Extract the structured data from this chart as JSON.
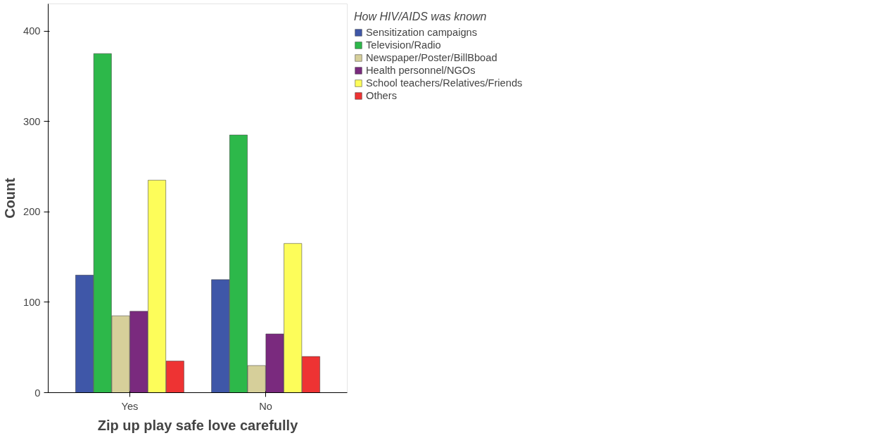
{
  "chart_data": {
    "type": "bar",
    "xlabel": "Zip up play safe love carefully",
    "ylabel": "Count",
    "legend_title": "How HIV/AIDS was known",
    "categories": [
      "Yes",
      "No"
    ],
    "series": [
      {
        "name": "Sensitization campaigns",
        "color": "#3f57a8",
        "values": [
          130,
          125
        ]
      },
      {
        "name": "Television/Radio",
        "color": "#2db84a",
        "values": [
          375,
          285
        ]
      },
      {
        "name": "Newspaper/Poster/BillBboad",
        "color": "#d6cf9a",
        "values": [
          85,
          30
        ]
      },
      {
        "name": "Health personnel/NGOs",
        "color": "#7a2a7e",
        "values": [
          90,
          65
        ]
      },
      {
        "name": "School teachers/Relatives/Friends",
        "color": "#fdfd5a",
        "values": [
          235,
          165
        ]
      },
      {
        "name": "Others",
        "color": "#ee3333",
        "values": [
          35,
          40
        ]
      }
    ],
    "ylim": [
      0,
      430
    ],
    "yticks": [
      0,
      100,
      200,
      300,
      400
    ],
    "grid": false,
    "legend": "right"
  }
}
